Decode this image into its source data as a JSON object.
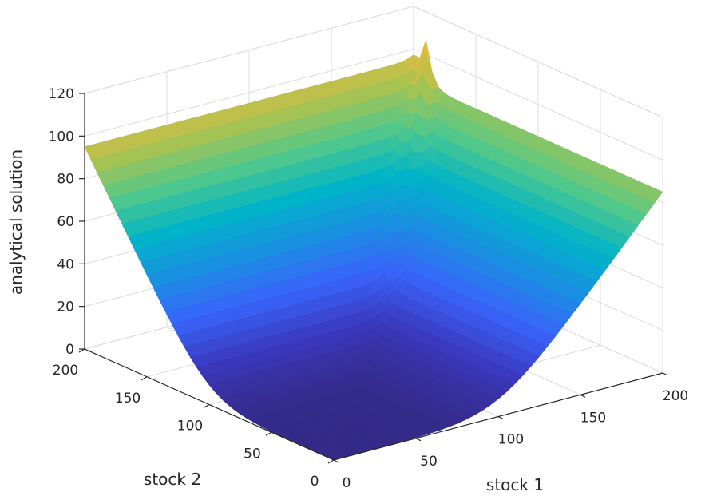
{
  "chart_data": {
    "type": "surface",
    "title": "",
    "xlabel": "stock 1",
    "ylabel": "stock 2",
    "zlabel": "analytical solution",
    "xlim": [
      0,
      200
    ],
    "ylim": [
      0,
      200
    ],
    "zlim": [
      0,
      120
    ],
    "x_ticks": [
      0,
      50,
      100,
      150,
      200
    ],
    "y_ticks": [
      0,
      50,
      100,
      150,
      200
    ],
    "z_ticks": [
      0,
      20,
      40,
      60,
      80,
      100,
      120
    ],
    "x_tick_labels": [
      "0",
      "50",
      "100",
      "150",
      "200"
    ],
    "y_tick_labels": [
      "0",
      "50",
      "100",
      "150",
      "200"
    ],
    "z_tick_labels": [
      "0",
      "20",
      "40",
      "60",
      "80",
      "100",
      "120"
    ],
    "grid": true,
    "colormap": "parula",
    "corner_values": [
      {
        "x": 0,
        "y": 0,
        "z": 0
      },
      {
        "x": 200,
        "y": 0,
        "z": 85
      },
      {
        "x": 0,
        "y": 200,
        "z": 95
      },
      {
        "x": 200,
        "y": 200,
        "z": 122
      }
    ],
    "flat_region": {
      "x": [
        0,
        100
      ],
      "y": [
        0,
        100
      ],
      "z": 0
    }
  }
}
